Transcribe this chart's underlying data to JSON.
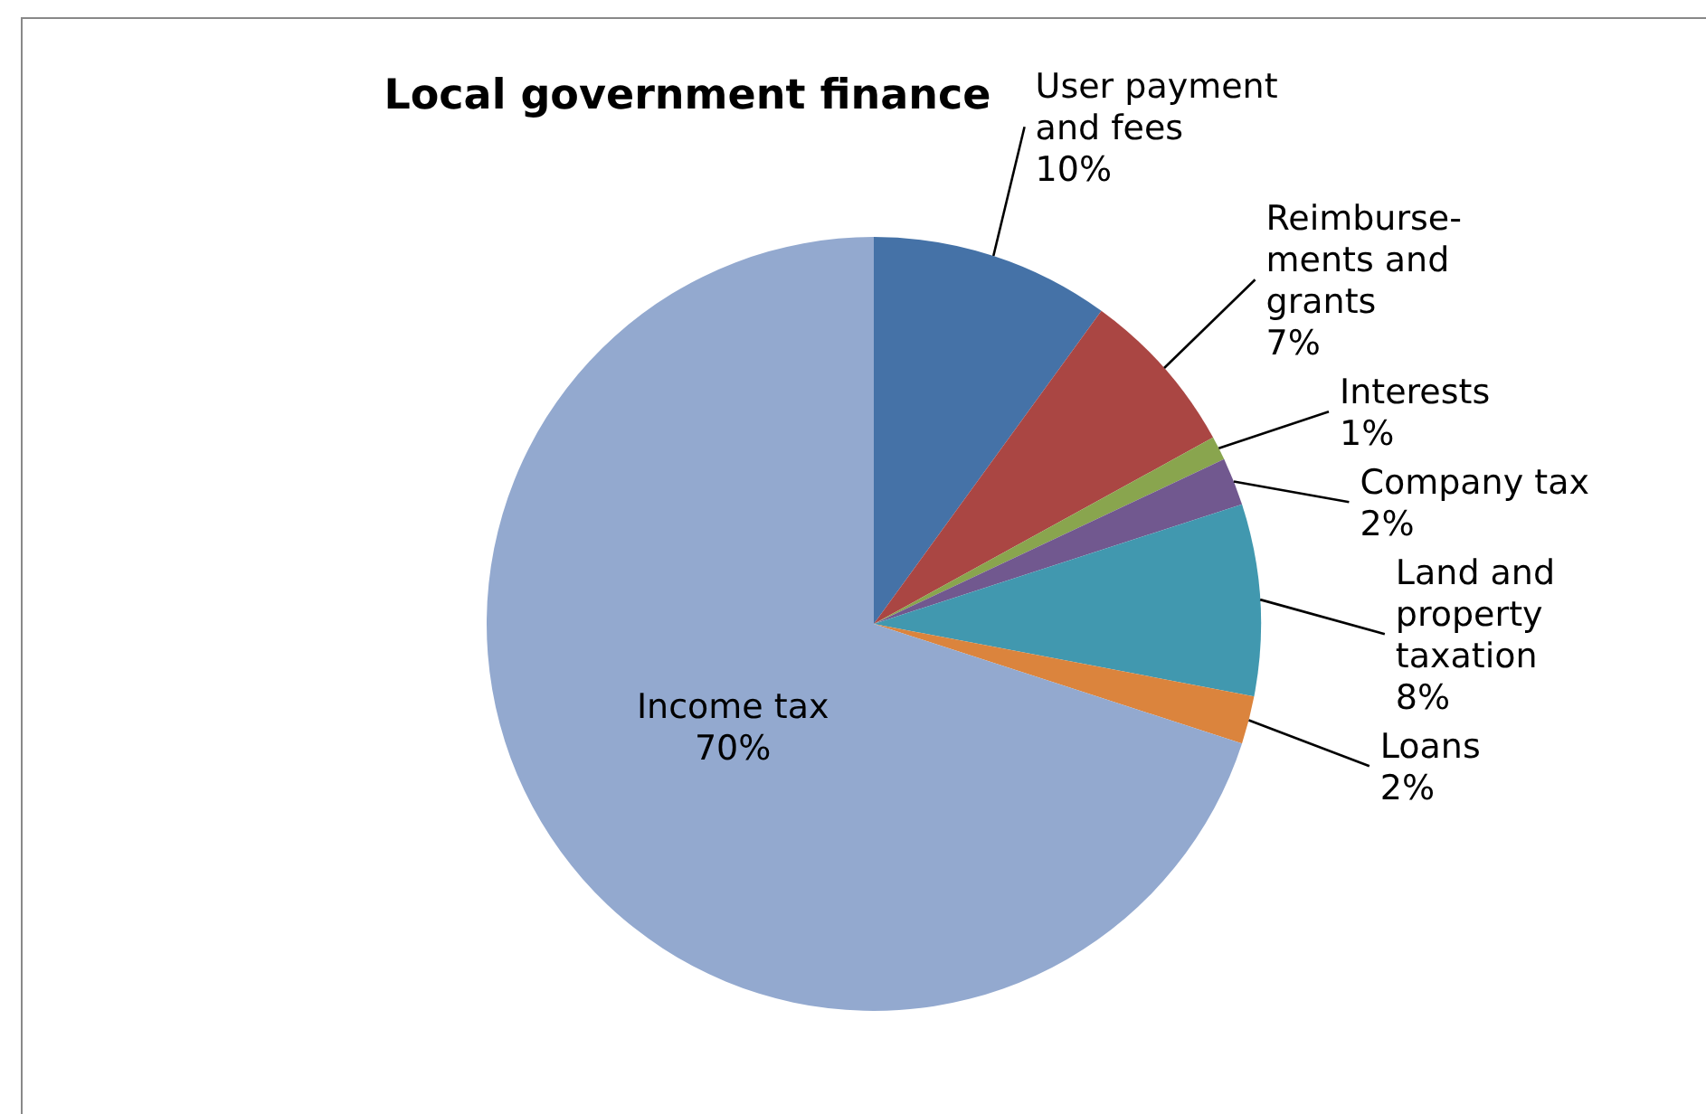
{
  "chart_data": {
    "type": "pie",
    "title": "Local government finance",
    "categories": [
      "User payment and fees",
      "Reimburse-ments and grants",
      "Interests",
      "Company tax",
      "Land and property taxation",
      "Loans",
      "Income tax"
    ],
    "values": [
      10,
      7,
      1,
      2,
      8,
      2,
      70
    ],
    "colors": [
      "#4572a7",
      "#aa4643",
      "#89a54e",
      "#71588f",
      "#4198af",
      "#db843d",
      "#93a9cf"
    ],
    "value_labels": [
      "10%",
      "7%",
      "1%",
      "2%",
      "8%",
      "2%",
      "70%"
    ],
    "legend": false
  }
}
